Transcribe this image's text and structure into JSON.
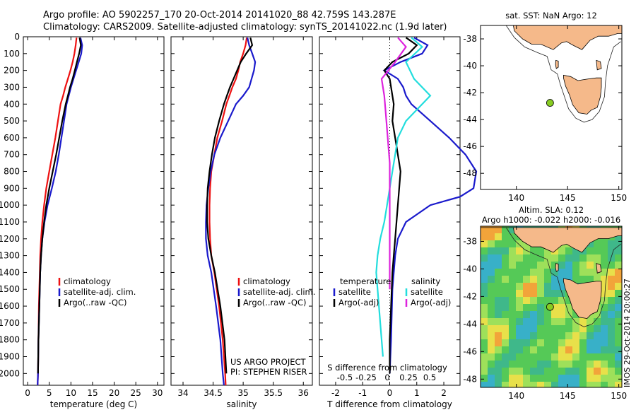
{
  "header": {
    "line1": "Argo profile: AO 5902257_170 20-Oct-2014 20141020_88 42.759S 143.287E",
    "line2": "Climatology: CARS2009. Satellite-adjusted climatology: synTS_20141022.nc (1.9d later)"
  },
  "colors": {
    "climatology": "#ee1111",
    "satellite": "#1a1acc",
    "argo": "#000000",
    "satellite_s": "#22dddd",
    "argo_s": "#dd22dd",
    "land": "#f5b98a",
    "sst_bg": "#ffffff"
  },
  "chart_data": [
    {
      "id": "temperature",
      "type": "line",
      "xlabel": "temperature (deg C)",
      "ylabel": "",
      "xlim": [
        -1,
        31.5
      ],
      "ylim": [
        2070,
        0
      ],
      "xticks": [
        0,
        5,
        10,
        15,
        20,
        25,
        30
      ],
      "yticks": [
        0,
        100,
        200,
        300,
        400,
        500,
        600,
        700,
        800,
        900,
        1000,
        1100,
        1200,
        1300,
        1400,
        1500,
        1600,
        1700,
        1800,
        1900,
        2000
      ],
      "series": [
        {
          "name": "climatology",
          "color": "#ee1111",
          "x": [
            11.3,
            11.1,
            10.8,
            10.4,
            9.9,
            9.3,
            8.7,
            8.2,
            7.6,
            7.0,
            6.4,
            5.7,
            5.0,
            4.3,
            3.8,
            3.4,
            3.1,
            2.9,
            2.8,
            2.6,
            2.5,
            2.4,
            2.3
          ],
          "y": [
            5,
            50,
            100,
            150,
            200,
            250,
            300,
            350,
            400,
            500,
            600,
            700,
            800,
            900,
            1000,
            1100,
            1200,
            1300,
            1400,
            1600,
            1800,
            2000,
            2070
          ]
        },
        {
          "name": "satellite-adj. clim.",
          "color": "#1a1acc",
          "x": [
            12.2,
            12.6,
            12.4,
            11.8,
            11.2,
            10.6,
            10.0,
            9.5,
            9.0,
            8.4,
            7.8,
            7.2,
            6.5,
            5.6,
            4.6,
            3.9,
            3.4,
            3.1,
            2.9,
            2.7,
            2.5,
            2.4,
            2.3
          ],
          "y": [
            5,
            50,
            100,
            150,
            200,
            250,
            300,
            350,
            400,
            500,
            600,
            700,
            800,
            900,
            1000,
            1100,
            1200,
            1300,
            1400,
            1600,
            1800,
            2000,
            2070
          ]
        },
        {
          "name": "Argo(..raw -QC)",
          "color": "#000000",
          "x": [
            12.0,
            12.3,
            11.9,
            11.4,
            10.9,
            10.4,
            9.8,
            9.3,
            8.8,
            8.0,
            7.3,
            6.6,
            5.8,
            5.0,
            4.3,
            3.8,
            3.4,
            3.1,
            2.9,
            2.7,
            2.5,
            2.4
          ],
          "y": [
            5,
            50,
            100,
            150,
            200,
            250,
            300,
            350,
            400,
            500,
            600,
            700,
            800,
            900,
            1000,
            1100,
            1200,
            1300,
            1400,
            1600,
            1800,
            2000
          ]
        }
      ],
      "legend": [
        "climatology",
        "satellite-adj. clim.",
        "Argo(..raw -QC)"
      ]
    },
    {
      "id": "salinity",
      "type": "line",
      "xlabel": "salinity",
      "xlim": [
        33.8,
        36.15
      ],
      "ylim": [
        2070,
        0
      ],
      "xticks": [
        34,
        34.5,
        35,
        35.5,
        36
      ],
      "series": [
        {
          "name": "climatology",
          "color": "#ee1111",
          "x": [
            35.06,
            35.04,
            35.0,
            34.95,
            34.92,
            34.88,
            34.82,
            34.77,
            34.72,
            34.65,
            34.57,
            34.52,
            34.47,
            34.45,
            34.44,
            34.44,
            34.45,
            34.47,
            34.52,
            34.6,
            34.66,
            34.7,
            34.71
          ],
          "y": [
            5,
            50,
            100,
            150,
            200,
            250,
            300,
            350,
            400,
            500,
            600,
            700,
            800,
            900,
            1000,
            1100,
            1200,
            1300,
            1400,
            1600,
            1800,
            2000,
            2070
          ]
        },
        {
          "name": "satellite-adj. clim.",
          "color": "#1a1acc",
          "x": [
            35.07,
            35.1,
            35.15,
            35.2,
            35.18,
            35.14,
            35.1,
            35.0,
            34.88,
            34.75,
            34.62,
            34.52,
            34.46,
            34.42,
            34.39,
            34.38,
            34.38,
            34.41,
            34.47,
            34.55,
            34.62,
            34.66,
            34.68
          ],
          "y": [
            5,
            50,
            100,
            150,
            200,
            250,
            300,
            350,
            400,
            500,
            600,
            700,
            800,
            900,
            1000,
            1100,
            1200,
            1300,
            1400,
            1600,
            1800,
            2000,
            2070
          ]
        },
        {
          "name": "Argo(..raw -QC)",
          "color": "#000000",
          "x": [
            35.12,
            35.15,
            35.05,
            34.96,
            34.9,
            34.84,
            34.78,
            34.73,
            34.68,
            34.6,
            34.53,
            34.48,
            34.44,
            34.41,
            34.4,
            34.4,
            34.42,
            34.47,
            34.53,
            34.62,
            34.69,
            34.72
          ],
          "y": [
            5,
            50,
            100,
            150,
            200,
            250,
            300,
            350,
            400,
            500,
            600,
            700,
            800,
            900,
            1000,
            1100,
            1200,
            1300,
            1400,
            1600,
            1800,
            2000
          ]
        }
      ],
      "legend": [
        "climatology",
        "satellite-adj. clim.",
        "Argo(..raw -QC)"
      ],
      "annotation": [
        "US ARGO PROJECT",
        "PI: STEPHEN RISER"
      ]
    },
    {
      "id": "differences",
      "type": "line",
      "xlabel": "T difference from climatology",
      "top_axis_label": "S difference from climatology",
      "xlim": [
        -2.6,
        2.6
      ],
      "ylim": [
        2070,
        0
      ],
      "xticks": [
        -2,
        -1,
        0,
        1,
        2
      ],
      "top_ticks": [
        "-0.5",
        "-0.25",
        "0",
        "0.25",
        "0.5"
      ],
      "series": [
        {
          "name": "temperature satellite",
          "color": "#1a1acc",
          "x": [
            0.9,
            1.4,
            1.2,
            0.4,
            -0.2,
            0.3,
            0.5,
            0.6,
            0.8,
            1.5,
            2.2,
            2.8,
            3.2,
            3.1,
            2.6,
            1.5,
            0.6,
            0.3,
            0.2,
            0.1,
            0.05,
            0.0
          ],
          "y": [
            5,
            50,
            100,
            150,
            200,
            250,
            300,
            350,
            400,
            500,
            600,
            700,
            800,
            900,
            950,
            1000,
            1100,
            1200,
            1300,
            1500,
            1800,
            2000
          ]
        },
        {
          "name": "temperature Argo(-adj)",
          "color": "#000000",
          "x": [
            0.6,
            1.0,
            0.7,
            0.1,
            -0.2,
            0.0,
            0.05,
            0.1,
            0.15,
            0.1,
            0.2,
            0.3,
            0.4,
            0.35,
            0.3,
            0.25,
            0.2,
            0.15,
            0.1,
            0.05,
            0.0,
            0.0
          ],
          "y": [
            5,
            50,
            100,
            150,
            200,
            250,
            300,
            350,
            400,
            500,
            600,
            700,
            800,
            900,
            1000,
            1100,
            1200,
            1300,
            1400,
            1600,
            1800,
            2000
          ]
        },
        {
          "name": "salinity satellite",
          "color": "#22dddd",
          "x": [
            0.8,
            1.2,
            0.6,
            0.9,
            1.5,
            0.6,
            0.3,
            0.2,
            0.1,
            0.0,
            -0.1,
            -0.2,
            -0.35,
            -0.45,
            -0.5,
            -0.45,
            -0.4,
            -0.35,
            -0.3,
            -0.25
          ],
          "y": [
            5,
            60,
            150,
            250,
            350,
            500,
            600,
            700,
            800,
            900,
            1000,
            1100,
            1200,
            1300,
            1400,
            1500,
            1600,
            1700,
            1800,
            1900
          ]
        },
        {
          "name": "salinity Argo(-adj)",
          "color": "#dd22dd",
          "x": [
            0.3,
            0.6,
            0.2,
            -0.3,
            -0.2,
            -0.15,
            -0.1,
            -0.05,
            0.0,
            0.0,
            0.0,
            0.0,
            0.0,
            0.0,
            0.0,
            0.0
          ],
          "y": [
            5,
            60,
            150,
            250,
            350,
            450,
            550,
            650,
            750,
            850,
            950,
            1050,
            1150,
            1250,
            1400,
            1500
          ]
        }
      ],
      "legend_groups": {
        "temperature": "temperature",
        "salinity": "salinity",
        "items_left": [
          "satellite",
          "Argo(-adj)"
        ],
        "items_right": [
          "satellite",
          "Argo(-adj)"
        ]
      }
    },
    {
      "id": "map_sst",
      "type": "scatter",
      "title": "sat. SST: NaN  Argo: 12",
      "xlim": [
        136.5,
        150.3
      ],
      "ylim": [
        -49.2,
        -37
      ],
      "xticks": [
        140,
        145,
        150
      ],
      "yticks": [
        -38,
        -40,
        -42,
        -44,
        -46,
        -48
      ],
      "points": [
        {
          "x": 143.287,
          "y": -42.759,
          "color": "#88cc22"
        }
      ]
    },
    {
      "id": "map_sla",
      "type": "heatmap",
      "title": "Altim. SLA: 0.12",
      "subtitle": "Argo h1000: -0.022 h2000: -0.016",
      "xlim": [
        136.5,
        150.3
      ],
      "ylim": [
        -48.6,
        -36.9
      ],
      "xticks": [
        140,
        145,
        150
      ],
      "yticks": [
        -38,
        -40,
        -42,
        -44,
        -46,
        -48
      ],
      "points": [
        {
          "x": 143.287,
          "y": -42.759,
          "color": "#88cc22"
        }
      ],
      "side_label": "IMOS 29-Oct-2014 20:00:27"
    }
  ]
}
